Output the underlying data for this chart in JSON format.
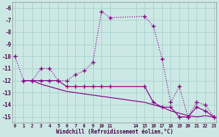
{
  "bg_color": "#cce8e4",
  "grid_color": "#aad4ce",
  "line_color": "#880088",
  "xlim": [
    -0.3,
    23.3
  ],
  "ylim": [
    -15.5,
    -5.5
  ],
  "yticks": [
    -15,
    -14,
    -13,
    -12,
    -11,
    -10,
    -9,
    -8,
    -7,
    -6
  ],
  "xticks": [
    0,
    1,
    2,
    3,
    4,
    5,
    6,
    7,
    8,
    9,
    10,
    11,
    14,
    15,
    16,
    17,
    18,
    19,
    20,
    21,
    22,
    23
  ],
  "xtick_labels": [
    "0",
    "1",
    "2",
    "3",
    "4",
    "5",
    "6",
    "7",
    "8",
    "9",
    "10",
    "11",
    "14",
    "15",
    "16",
    "17",
    "18",
    "19",
    "20",
    "21",
    "22",
    "23"
  ],
  "xlabel": "Windchill (Refroidissement éolien,°C)",
  "curve1_x": [
    0,
    1,
    2,
    3,
    4,
    5,
    6,
    7,
    8,
    9,
    10,
    11,
    15,
    16,
    17,
    18,
    19,
    20,
    21,
    22,
    23
  ],
  "curve1_y": [
    -10,
    -12,
    -12,
    -11.0,
    -11.0,
    -12.0,
    -12.0,
    -11.5,
    -11.2,
    -10.5,
    -6.3,
    -6.8,
    -6.7,
    -7.5,
    -10.2,
    -13.8,
    -12.5,
    -15.0,
    -13.8,
    -14.0,
    -15.0
  ],
  "curve2_x": [
    1,
    2,
    3,
    4,
    5,
    6,
    7,
    8,
    9,
    10,
    11,
    15,
    16,
    17,
    18,
    19,
    20,
    21,
    22,
    23
  ],
  "curve2_y": [
    -12,
    -12,
    -12.0,
    -12.0,
    -12.0,
    -12.5,
    -12.5,
    -12.5,
    -12.5,
    -12.5,
    -12.5,
    -12.5,
    -13.8,
    -14.2,
    -14.2,
    -15.0,
    -15.0,
    -14.2,
    -14.5,
    -15.0
  ],
  "curve3_x": [
    1,
    2,
    3,
    4,
    5,
    6,
    7,
    8,
    9,
    10,
    11,
    15,
    16,
    17,
    18,
    19,
    20,
    21,
    22,
    23
  ],
  "curve3_y": [
    -12,
    -12,
    -12.3,
    -12.5,
    -12.7,
    -12.9,
    -13.0,
    -13.1,
    -13.2,
    -13.3,
    -13.4,
    -13.8,
    -14.0,
    -14.2,
    -14.5,
    -14.7,
    -14.9,
    -15.0,
    -14.9,
    -15.0
  ]
}
